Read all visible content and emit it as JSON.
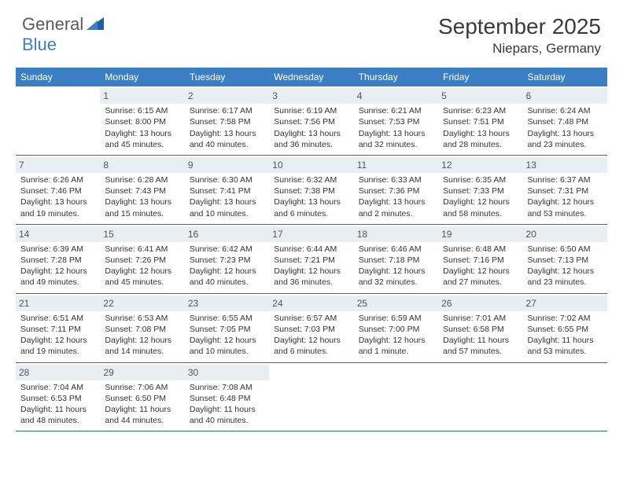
{
  "brand": {
    "part1": "General",
    "part2": "Blue"
  },
  "title": "September 2025",
  "location": "Niepars, Germany",
  "colors": {
    "header_bg": "#3a7fc4",
    "header_text": "#ffffff",
    "daynum_bg": "#e9eef3",
    "row_border": "#2f6aa8",
    "body_text": "#333333"
  },
  "day_names": [
    "Sunday",
    "Monday",
    "Tuesday",
    "Wednesday",
    "Thursday",
    "Friday",
    "Saturday"
  ],
  "weeks": [
    [
      {
        "n": "",
        "sunrise": "",
        "sunset": "",
        "daylight": ""
      },
      {
        "n": "1",
        "sunrise": "Sunrise: 6:15 AM",
        "sunset": "Sunset: 8:00 PM",
        "daylight": "Daylight: 13 hours and 45 minutes."
      },
      {
        "n": "2",
        "sunrise": "Sunrise: 6:17 AM",
        "sunset": "Sunset: 7:58 PM",
        "daylight": "Daylight: 13 hours and 40 minutes."
      },
      {
        "n": "3",
        "sunrise": "Sunrise: 6:19 AM",
        "sunset": "Sunset: 7:56 PM",
        "daylight": "Daylight: 13 hours and 36 minutes."
      },
      {
        "n": "4",
        "sunrise": "Sunrise: 6:21 AM",
        "sunset": "Sunset: 7:53 PM",
        "daylight": "Daylight: 13 hours and 32 minutes."
      },
      {
        "n": "5",
        "sunrise": "Sunrise: 6:23 AM",
        "sunset": "Sunset: 7:51 PM",
        "daylight": "Daylight: 13 hours and 28 minutes."
      },
      {
        "n": "6",
        "sunrise": "Sunrise: 6:24 AM",
        "sunset": "Sunset: 7:48 PM",
        "daylight": "Daylight: 13 hours and 23 minutes."
      }
    ],
    [
      {
        "n": "7",
        "sunrise": "Sunrise: 6:26 AM",
        "sunset": "Sunset: 7:46 PM",
        "daylight": "Daylight: 13 hours and 19 minutes."
      },
      {
        "n": "8",
        "sunrise": "Sunrise: 6:28 AM",
        "sunset": "Sunset: 7:43 PM",
        "daylight": "Daylight: 13 hours and 15 minutes."
      },
      {
        "n": "9",
        "sunrise": "Sunrise: 6:30 AM",
        "sunset": "Sunset: 7:41 PM",
        "daylight": "Daylight: 13 hours and 10 minutes."
      },
      {
        "n": "10",
        "sunrise": "Sunrise: 6:32 AM",
        "sunset": "Sunset: 7:38 PM",
        "daylight": "Daylight: 13 hours and 6 minutes."
      },
      {
        "n": "11",
        "sunrise": "Sunrise: 6:33 AM",
        "sunset": "Sunset: 7:36 PM",
        "daylight": "Daylight: 13 hours and 2 minutes."
      },
      {
        "n": "12",
        "sunrise": "Sunrise: 6:35 AM",
        "sunset": "Sunset: 7:33 PM",
        "daylight": "Daylight: 12 hours and 58 minutes."
      },
      {
        "n": "13",
        "sunrise": "Sunrise: 6:37 AM",
        "sunset": "Sunset: 7:31 PM",
        "daylight": "Daylight: 12 hours and 53 minutes."
      }
    ],
    [
      {
        "n": "14",
        "sunrise": "Sunrise: 6:39 AM",
        "sunset": "Sunset: 7:28 PM",
        "daylight": "Daylight: 12 hours and 49 minutes."
      },
      {
        "n": "15",
        "sunrise": "Sunrise: 6:41 AM",
        "sunset": "Sunset: 7:26 PM",
        "daylight": "Daylight: 12 hours and 45 minutes."
      },
      {
        "n": "16",
        "sunrise": "Sunrise: 6:42 AM",
        "sunset": "Sunset: 7:23 PM",
        "daylight": "Daylight: 12 hours and 40 minutes."
      },
      {
        "n": "17",
        "sunrise": "Sunrise: 6:44 AM",
        "sunset": "Sunset: 7:21 PM",
        "daylight": "Daylight: 12 hours and 36 minutes."
      },
      {
        "n": "18",
        "sunrise": "Sunrise: 6:46 AM",
        "sunset": "Sunset: 7:18 PM",
        "daylight": "Daylight: 12 hours and 32 minutes."
      },
      {
        "n": "19",
        "sunrise": "Sunrise: 6:48 AM",
        "sunset": "Sunset: 7:16 PM",
        "daylight": "Daylight: 12 hours and 27 minutes."
      },
      {
        "n": "20",
        "sunrise": "Sunrise: 6:50 AM",
        "sunset": "Sunset: 7:13 PM",
        "daylight": "Daylight: 12 hours and 23 minutes."
      }
    ],
    [
      {
        "n": "21",
        "sunrise": "Sunrise: 6:51 AM",
        "sunset": "Sunset: 7:11 PM",
        "daylight": "Daylight: 12 hours and 19 minutes."
      },
      {
        "n": "22",
        "sunrise": "Sunrise: 6:53 AM",
        "sunset": "Sunset: 7:08 PM",
        "daylight": "Daylight: 12 hours and 14 minutes."
      },
      {
        "n": "23",
        "sunrise": "Sunrise: 6:55 AM",
        "sunset": "Sunset: 7:05 PM",
        "daylight": "Daylight: 12 hours and 10 minutes."
      },
      {
        "n": "24",
        "sunrise": "Sunrise: 6:57 AM",
        "sunset": "Sunset: 7:03 PM",
        "daylight": "Daylight: 12 hours and 6 minutes."
      },
      {
        "n": "25",
        "sunrise": "Sunrise: 6:59 AM",
        "sunset": "Sunset: 7:00 PM",
        "daylight": "Daylight: 12 hours and 1 minute."
      },
      {
        "n": "26",
        "sunrise": "Sunrise: 7:01 AM",
        "sunset": "Sunset: 6:58 PM",
        "daylight": "Daylight: 11 hours and 57 minutes."
      },
      {
        "n": "27",
        "sunrise": "Sunrise: 7:02 AM",
        "sunset": "Sunset: 6:55 PM",
        "daylight": "Daylight: 11 hours and 53 minutes."
      }
    ],
    [
      {
        "n": "28",
        "sunrise": "Sunrise: 7:04 AM",
        "sunset": "Sunset: 6:53 PM",
        "daylight": "Daylight: 11 hours and 48 minutes."
      },
      {
        "n": "29",
        "sunrise": "Sunrise: 7:06 AM",
        "sunset": "Sunset: 6:50 PM",
        "daylight": "Daylight: 11 hours and 44 minutes."
      },
      {
        "n": "30",
        "sunrise": "Sunrise: 7:08 AM",
        "sunset": "Sunset: 6:48 PM",
        "daylight": "Daylight: 11 hours and 40 minutes."
      },
      {
        "n": "",
        "sunrise": "",
        "sunset": "",
        "daylight": ""
      },
      {
        "n": "",
        "sunrise": "",
        "sunset": "",
        "daylight": ""
      },
      {
        "n": "",
        "sunrise": "",
        "sunset": "",
        "daylight": ""
      },
      {
        "n": "",
        "sunrise": "",
        "sunset": "",
        "daylight": ""
      }
    ]
  ]
}
